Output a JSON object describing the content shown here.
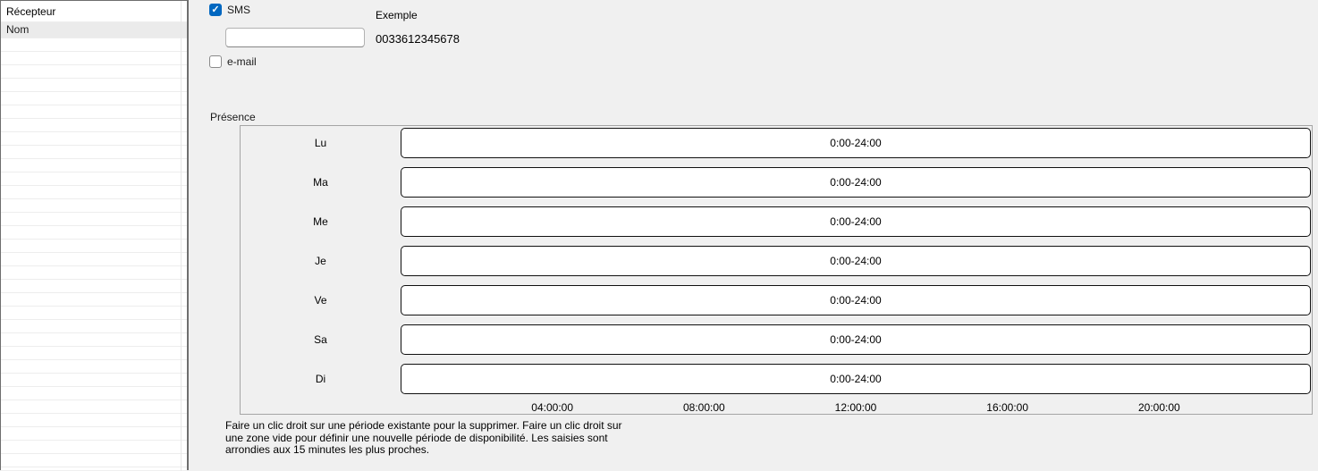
{
  "receiver_list": {
    "header": "Récepteur",
    "rows": [
      {
        "label": "Nom",
        "selected": true
      }
    ],
    "empty_row_count": 32
  },
  "notification": {
    "sms_label": "SMS",
    "sms_checked": true,
    "phone_value": "",
    "example_label": "Exemple",
    "example_value": "0033612345678",
    "email_label": "e-mail",
    "email_checked": false
  },
  "icons": {
    "checkmark": "✓"
  },
  "presence": {
    "title": "Présence",
    "days": [
      {
        "label": "Lu",
        "period": "0:00-24:00"
      },
      {
        "label": "Ma",
        "period": "0:00-24:00"
      },
      {
        "label": "Me",
        "period": "0:00-24:00"
      },
      {
        "label": "Je",
        "period": "0:00-24:00"
      },
      {
        "label": "Ve",
        "period": "0:00-24:00"
      },
      {
        "label": "Sa",
        "period": "0:00-24:00"
      },
      {
        "label": "Di",
        "period": "0:00-24:00"
      }
    ],
    "axis_ticks": [
      "04:00:00",
      "08:00:00",
      "12:00:00",
      "16:00:00",
      "20:00:00"
    ],
    "help_text": "Faire un clic droit sur une période existante pour la supprimer. Faire un clic droit sur une zone vide pour définir une nouvelle période de disponibilité. Les saisies sont arrondies aux 15 minutes les plus proches."
  },
  "colors": {
    "accent": "#0067c0",
    "background": "#f0f0f0",
    "panel_background": "#ffffff",
    "selected_row": "#ebebeb",
    "bar_border": "#111111",
    "group_border": "#a5a5a5",
    "divider": "#6e6e6e"
  }
}
